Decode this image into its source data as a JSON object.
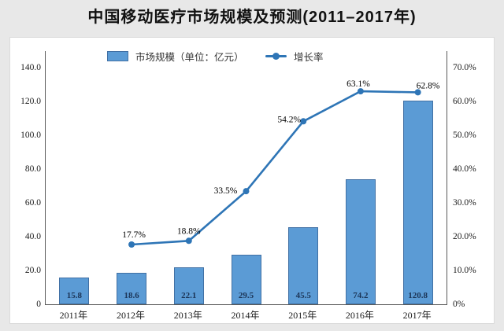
{
  "title": "中国移动医疗市场规模及预测(2011–2017年)",
  "legend": {
    "bar_label": "市场规模（单位：亿元）",
    "line_label": "增长率"
  },
  "chart_data": {
    "type": "bar+line combo",
    "title": "中国移动医疗市场规模及预测(2011–2017年)",
    "categories": [
      "2011年",
      "2012年",
      "2013年",
      "2014年",
      "2015年",
      "2016年",
      "2017年"
    ],
    "series": [
      {
        "name": "市场规模",
        "type": "bar",
        "unit": "亿元",
        "axis": "left",
        "values": [
          15.8,
          18.6,
          22.1,
          29.5,
          45.5,
          74.2,
          120.8
        ],
        "value_labels": [
          "15.8",
          "18.6",
          "22.1",
          "29.5",
          "45.5",
          "74.2",
          "120.8"
        ]
      },
      {
        "name": "增长率",
        "type": "line",
        "axis": "right",
        "values_pct": [
          null,
          17.7,
          18.8,
          33.5,
          54.2,
          63.1,
          62.8
        ],
        "point_labels": [
          null,
          "17.7%",
          "18.8%",
          "33.5%",
          "54.2%",
          "63.1%",
          "62.8%"
        ]
      }
    ],
    "left_axis": {
      "min": 0,
      "max": 150,
      "tick_step": 20,
      "ticks": [
        {
          "value": 140,
          "label": "140.0"
        },
        {
          "value": 120,
          "label": "120.0"
        },
        {
          "value": 100,
          "label": "100.0"
        },
        {
          "value": 80,
          "label": "80.0"
        },
        {
          "value": 60,
          "label": "60.0"
        },
        {
          "value": 40,
          "label": "40.0"
        },
        {
          "value": 20,
          "label": "20.0"
        },
        {
          "value": 0,
          "label": "0"
        }
      ]
    },
    "right_axis": {
      "min": 0,
      "max": 75,
      "tick_step": 10,
      "ticks": [
        {
          "value": 70,
          "label": "70.0%"
        },
        {
          "value": 60,
          "label": "60.0%"
        },
        {
          "value": 50,
          "label": "50.0%"
        },
        {
          "value": 40,
          "label": "40.0%"
        },
        {
          "value": 30,
          "label": "30.0%"
        },
        {
          "value": 20,
          "label": "20.0%"
        },
        {
          "value": 10,
          "label": "10.0%"
        },
        {
          "value": 0,
          "label": "0%"
        }
      ]
    },
    "legend_position": "top",
    "grid": false,
    "colors": {
      "bar": "#5B9BD5",
      "bar_border": "#4170A4",
      "line": "#2E75B6",
      "marker": "#2E75B6",
      "axis_line": "#5A5A5A",
      "bar_value_text": "#1C3557",
      "background": "#E8E8E8",
      "panel": "#FFFFFF"
    }
  }
}
